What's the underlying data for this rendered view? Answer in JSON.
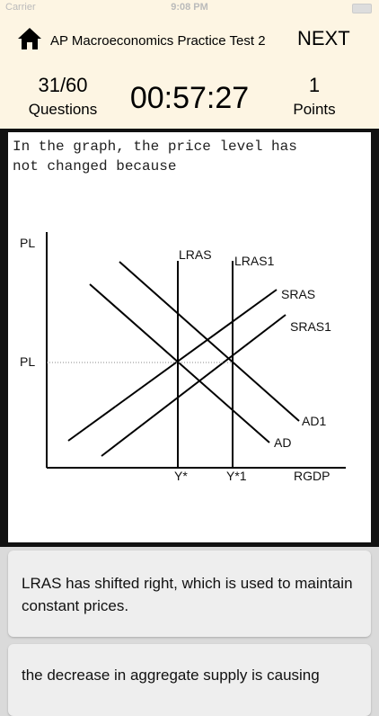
{
  "status_bar": {
    "carrier": "Carrier",
    "time": "9:08 PM"
  },
  "header": {
    "title": "AP Macroeconomics Practice Test 2",
    "next": "NEXT"
  },
  "stats": {
    "questions_value": "31/60",
    "questions_label": "Questions",
    "timer": "00:57:27",
    "points_value": "1",
    "points_label": "Points"
  },
  "question": {
    "text_line1": "In the graph, the price level has",
    "text_line2": "not changed because"
  },
  "graph": {
    "y_label_top": "PL",
    "y_label_mid": "PL",
    "lras": "LRAS",
    "lras1": "LRAS1",
    "sras": "SRAS",
    "sras1": "SRAS1",
    "ad": "AD",
    "ad1": "AD1",
    "y_star": "Y*",
    "y_star1": "Y*1",
    "x_label": "RGDP"
  },
  "answers": [
    {
      "text": "LRAS has shifted right, which is used to maintain constant prices."
    },
    {
      "text": "the decrease in aggregate supply is causing"
    }
  ]
}
